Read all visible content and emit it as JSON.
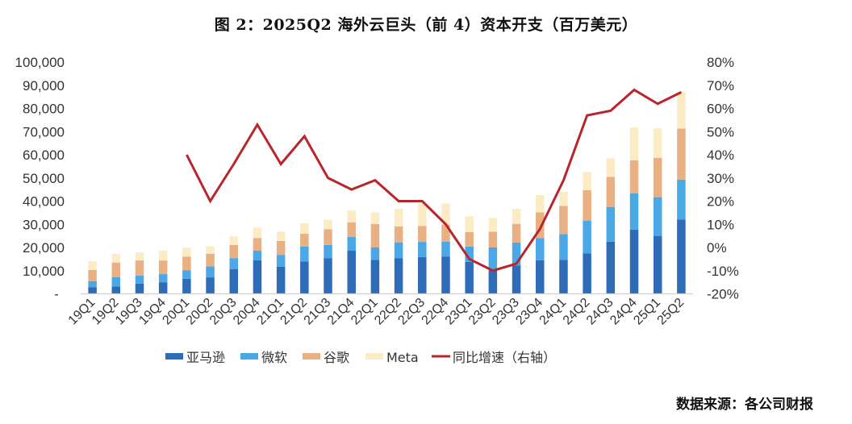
{
  "title": "图 2：2025Q2 海外云巨头（前 4）资本开支（百万美元）",
  "source": "数据来源：各公司财报",
  "chart_data": {
    "type": "bar",
    "stacked": true,
    "title": "图 2：2025Q2 海外云巨头（前 4）资本开支（百万美元）",
    "xlabel": "",
    "ylabel": "",
    "ylim": [
      0,
      100000
    ],
    "y2lim": [
      -20,
      80
    ],
    "y_ticks": [
      "-",
      "10,000",
      "20,000",
      "30,000",
      "40,000",
      "50,000",
      "60,000",
      "70,000",
      "80,000",
      "90,000",
      "100,000"
    ],
    "y2_ticks": [
      "-20%",
      "-10%",
      "0%",
      "10%",
      "20%",
      "30%",
      "40%",
      "50%",
      "60%",
      "70%",
      "80%"
    ],
    "grid": false,
    "legend_position": "bottom",
    "categories": [
      "19Q1",
      "19Q2",
      "19Q3",
      "19Q4",
      "20Q1",
      "20Q2",
      "20Q3",
      "20Q4",
      "21Q1",
      "21Q2",
      "21Q3",
      "21Q4",
      "22Q1",
      "22Q2",
      "22Q3",
      "22Q4",
      "23Q1",
      "23Q2",
      "23Q3",
      "23Q4",
      "24Q1",
      "24Q2",
      "24Q3",
      "24Q4",
      "25Q1",
      "25Q2"
    ],
    "series": [
      {
        "name": "亚马逊",
        "type": "bar",
        "axis": "left",
        "color": "#2e6cb8",
        "values": [
          2800,
          3200,
          4400,
          5000,
          6500,
          7100,
          10600,
          14500,
          11700,
          14000,
          15300,
          18600,
          14700,
          15300,
          15900,
          16100,
          13800,
          10100,
          12200,
          14500,
          14700,
          17500,
          22500,
          27700,
          25000,
          32100
        ]
      },
      {
        "name": "微软",
        "type": "bar",
        "axis": "left",
        "color": "#4aa8e6",
        "values": [
          2700,
          4000,
          3500,
          3500,
          3700,
          4700,
          4800,
          4100,
          5100,
          6400,
          5800,
          6000,
          5300,
          6900,
          6500,
          6400,
          6600,
          9900,
          9900,
          9600,
          11100,
          14100,
          15000,
          15700,
          16700,
          17200
        ]
      },
      {
        "name": "谷歌",
        "type": "bar",
        "axis": "left",
        "color": "#e9b183",
        "values": [
          4800,
          6300,
          6500,
          5900,
          5900,
          5500,
          5700,
          5500,
          6000,
          5500,
          6800,
          6200,
          10100,
          6900,
          6900,
          7400,
          6200,
          6800,
          8100,
          11100,
          12100,
          13100,
          13000,
          14200,
          17000,
          22000
        ]
      },
      {
        "name": "Meta",
        "type": "bar",
        "axis": "left",
        "color": "#fbecc5",
        "values": [
          3700,
          3700,
          3500,
          4300,
          3800,
          3200,
          3700,
          4500,
          4100,
          4600,
          4100,
          5200,
          5100,
          7600,
          9700,
          9100,
          6800,
          6000,
          6500,
          7400,
          6100,
          7900,
          8000,
          14200,
          12700,
          15800
        ]
      },
      {
        "name": "同比增速（右轴）",
        "type": "line",
        "axis": "right",
        "color": "#b8262b",
        "values": [
          null,
          null,
          null,
          null,
          40,
          20,
          36,
          53,
          36,
          48,
          30,
          25,
          29,
          20,
          20,
          10,
          -5,
          -10,
          -7,
          8,
          29,
          57,
          59,
          68,
          62,
          67
        ]
      }
    ]
  }
}
